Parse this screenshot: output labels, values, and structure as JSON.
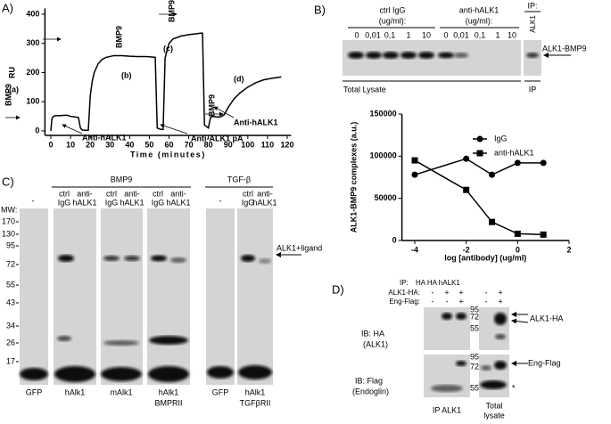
{
  "panel_a": {
    "label": "A)"
  },
  "panel_b": {
    "label": "B)",
    "ctrl_header": [
      "ctrl IgG",
      "(ug/ml):"
    ],
    "anti_header": [
      "anti-hALK1",
      "(ug/ml):"
    ],
    "ip_header": "IP:",
    "ip_lane": "ALK1",
    "lanes": [
      "0",
      "0,01",
      "0,1",
      "1",
      "10",
      "0",
      "0,01",
      "0,1",
      "1",
      "10"
    ],
    "band": "ALK1-BMP9",
    "lysate": "Total Lysate",
    "ip": "IP"
  },
  "panel_c": {
    "label": "C)",
    "bmp9": "BMP9",
    "tgfb": "TGF-β",
    "lane_heads": [
      [
        "ctrl",
        "IgG"
      ],
      [
        "anti-",
        "hALK1"
      ],
      [
        "ctrl",
        "IgG"
      ],
      [
        "anti-",
        "hALK1"
      ],
      [
        "ctrl",
        "IgG"
      ],
      [
        "anti-",
        "hALK1"
      ],
      [
        "ctrl",
        "IgG"
      ],
      [
        "anti-",
        "hALK1"
      ]
    ],
    "dashes": [
      "-",
      "-"
    ],
    "mw_title": "MW:",
    "mw": [
      "170",
      "130",
      "95",
      "72",
      "55",
      "43",
      "34",
      "26",
      "17"
    ],
    "band": "ALK1+ligand",
    "bottom": [
      [
        "GFP"
      ],
      [
        "hAlk1"
      ],
      [
        "mAlk1"
      ],
      [
        "hAlk1",
        "BMPRII"
      ],
      [
        "GFP"
      ],
      [
        "hAlk1",
        "TGFβRII"
      ]
    ]
  },
  "panel_d": {
    "label": "D)",
    "ip_title": "IP:",
    "ip_lanes": "HA HA hALK1",
    "alk1_row": "ALK1-HA:",
    "alk1_signs": [
      "-",
      "+",
      "+",
      "-",
      "+"
    ],
    "eng_row": "Eng-Flag:",
    "eng_signs": [
      "-",
      "-",
      "+",
      "-",
      "+"
    ],
    "ib_ha": [
      "IB: HA",
      "(ALK1)"
    ],
    "ib_flag": [
      "IB: Flag",
      "(Endoglin)"
    ],
    "mw": [
      "95",
      "72",
      "55",
      "95",
      "72",
      "55"
    ],
    "band_ha": "ALK1-HA",
    "band_flag": "Eng-Flag",
    "star": "*",
    "bottom_ip": "IP ALK1",
    "bottom_total": [
      "Total",
      "lysate"
    ]
  },
  "chart_data": [
    {
      "type": "line",
      "xlabel": "Time (minutes)",
      "ylabel": "RU",
      "color": "#000000",
      "x": [
        0,
        0.5,
        1,
        2,
        4,
        8,
        10,
        12,
        14,
        15,
        16,
        18,
        19,
        19.5,
        20,
        21,
        22,
        24,
        26,
        28,
        32,
        36,
        40,
        44,
        48,
        50,
        52,
        53,
        54,
        56,
        57,
        58,
        60,
        62,
        66,
        70,
        74,
        76,
        77,
        78,
        80,
        81,
        82,
        84,
        86,
        88,
        90,
        93,
        96,
        100,
        104,
        108,
        112,
        117
      ],
      "values": [
        0,
        40,
        48,
        52,
        52,
        54,
        50,
        48,
        46,
        10,
        3,
        2,
        2,
        60,
        120,
        170,
        200,
        230,
        245,
        252,
        258,
        258,
        256,
        255,
        255,
        254,
        253,
        252,
        10,
        5,
        5,
        250,
        300,
        315,
        325,
        330,
        333,
        335,
        335,
        20,
        10,
        45,
        50,
        48,
        48,
        55,
        80,
        110,
        130,
        150,
        165,
        175,
        180,
        185
      ],
      "xlim": [
        -3,
        122
      ],
      "xticks": [
        0,
        10,
        20,
        30,
        40,
        50,
        60,
        70,
        80,
        90,
        100,
        110,
        120
      ],
      "ylim": [
        -20,
        420
      ],
      "yticks": [
        0,
        100,
        200,
        300,
        400
      ],
      "annotations": [
        "BMP9",
        "(a)",
        "BMP9",
        "(b)",
        "BMP9",
        "(c)",
        "BMP9",
        "(d)",
        "Anti-hALK1",
        "Anti-ALK1 pA",
        "Anti-hALK1"
      ]
    },
    {
      "type": "line",
      "xlabel": "log [antibody] (ug/ml)",
      "ylabel": "ALK1-BMP9 complexes (a.u.)",
      "x": [
        -4,
        -2,
        -1,
        0,
        1
      ],
      "series": [
        {
          "name": "IgG",
          "color": "#000000",
          "marker": "circle",
          "values": [
            78000,
            97000,
            78000,
            92000,
            92000
          ]
        },
        {
          "name": "anti-hALK1",
          "color": "#000000",
          "marker": "square",
          "values": [
            95000,
            60000,
            22000,
            8000,
            7000
          ]
        }
      ],
      "xlim": [
        -4.5,
        2
      ],
      "xticks": [
        -4,
        -2,
        0,
        2
      ],
      "ylim": [
        0,
        150000
      ],
      "yticks": [
        0,
        50000,
        100000,
        150000
      ]
    }
  ]
}
